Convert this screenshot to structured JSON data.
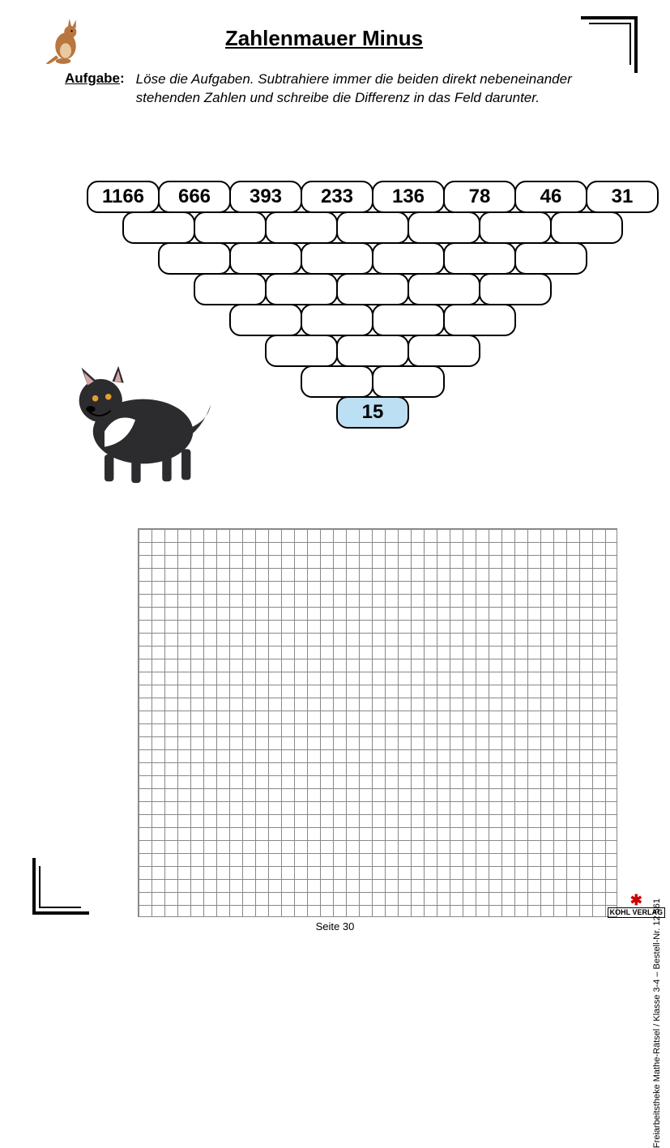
{
  "title": "Zahlenmauer Minus",
  "task_label": "Aufgabe",
  "task_text": "Löse die Aufgaben. Subtrahiere immer die beiden direkt nebeneinander stehenden Zahlen und schreibe die Differenz in das Feld darunter.",
  "pyramid": {
    "rows": [
      [
        "1166",
        "666",
        "393",
        "233",
        "136",
        "78",
        "46",
        "31"
      ],
      [
        "",
        "",
        "",
        "",
        "",
        "",
        ""
      ],
      [
        "",
        "",
        "",
        "",
        "",
        ""
      ],
      [
        "",
        "",
        "",
        "",
        ""
      ],
      [
        "",
        "",
        "",
        ""
      ],
      [
        "",
        "",
        ""
      ],
      [
        "",
        ""
      ],
      [
        "15"
      ]
    ],
    "answer_row": 7,
    "answer_bg": "#bcdff3",
    "brick_border": "#000000",
    "brick_width": 90,
    "brick_height": 40,
    "font_size": 24
  },
  "grid": {
    "cell_size": 16,
    "cols": 37,
    "rows": 30,
    "line_color": "#888888"
  },
  "animals": {
    "top_left": "kangaroo",
    "mid_left": "tasmanian-devil"
  },
  "footer": {
    "page_label": "Seite 30",
    "side": "Freiarbeitstheke Mathe-Rätsel  /  Klasse 3-4    –    Bestell-Nr. 12 561",
    "publisher": "KOHL VERLAG"
  },
  "colors": {
    "page_bg": "#ffffff",
    "text": "#000000"
  }
}
